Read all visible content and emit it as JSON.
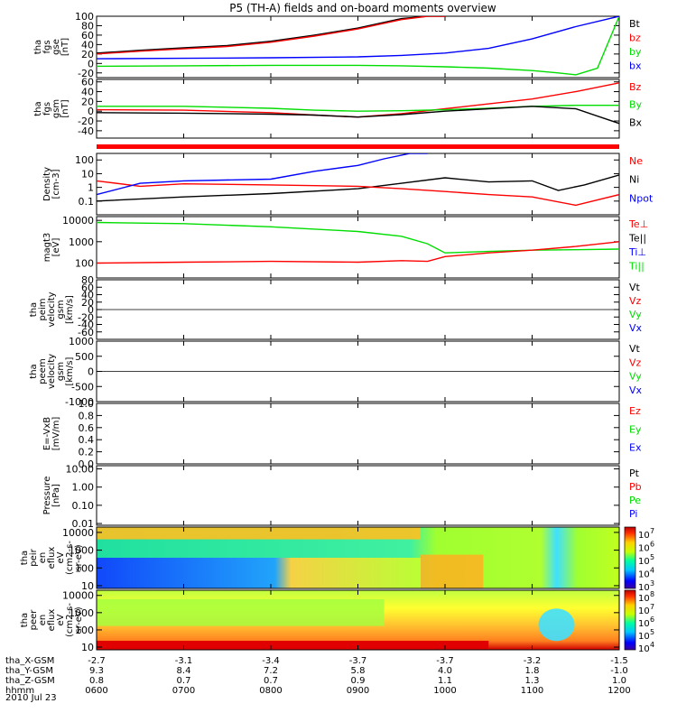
{
  "title": "P5 (TH-A) fields and on-board moments overview",
  "date": "2010 Jul 23",
  "colors": {
    "black": "#000000",
    "red": "#ff0000",
    "green": "#00dd00",
    "blue": "#0000ff",
    "strip": "#ff0000"
  },
  "panels": [
    {
      "id": "fgs-gse",
      "ylabel": [
        "tha",
        "fgs",
        "gse",
        "[nT]"
      ],
      "ylim": [
        -30,
        100
      ],
      "yticks": [
        "100",
        "80",
        "60",
        "40",
        "20",
        "0",
        "-20"
      ],
      "yvals": [
        100,
        80,
        60,
        40,
        20,
        0,
        -20
      ],
      "scale": "linear",
      "legend": [
        {
          "name": "Bt",
          "color": "black"
        },
        {
          "name": "bz",
          "color": "red"
        },
        {
          "name": "by",
          "color": "green"
        },
        {
          "name": "bx",
          "color": "blue"
        }
      ]
    },
    {
      "id": "fgs-gsm",
      "ylabel": [
        "tha",
        "fgs",
        "gsm",
        "[nT]"
      ],
      "ylim": [
        -55,
        65
      ],
      "yticks": [
        "60",
        "40",
        "20",
        "0",
        "-20",
        "-40"
      ],
      "yvals": [
        60,
        40,
        20,
        0,
        -20,
        -40
      ],
      "scale": "linear",
      "legend": [
        {
          "name": "Bz",
          "color": "red"
        },
        {
          "name": "By",
          "color": "green"
        },
        {
          "name": "Bx",
          "color": "black"
        }
      ]
    },
    {
      "id": "density",
      "ylabel": [
        "Density",
        "[cm-3]"
      ],
      "ylim": [
        0.01,
        300
      ],
      "yticks": [
        "100",
        "10",
        "1",
        "0.1"
      ],
      "yvals": [
        100,
        10,
        1,
        0.1
      ],
      "scale": "log",
      "legend": [
        {
          "name": "Ne",
          "color": "red"
        },
        {
          "name": "Ni",
          "color": "black"
        },
        {
          "name": "Npot",
          "color": "blue"
        }
      ]
    },
    {
      "id": "temperature",
      "ylabel": [
        "magt3",
        "[eV]"
      ],
      "ylim": [
        20,
        15000
      ],
      "yticks": [
        "10000",
        "1000",
        "100"
      ],
      "yvals": [
        10000,
        1000,
        100
      ],
      "scale": "log",
      "legend": [
        {
          "name": "Te⊥",
          "color": "red"
        },
        {
          "name": "Te||",
          "color": "black"
        },
        {
          "name": "Ti⊥",
          "color": "blue"
        },
        {
          "name": "Ti||",
          "color": "green"
        }
      ]
    },
    {
      "id": "peim",
      "ylabel": [
        "tha",
        "peim",
        "velocity",
        "gsm",
        "[km/s]"
      ],
      "ylim": [
        -80,
        80
      ],
      "yticks": [
        "80",
        "60",
        "40",
        "20",
        "0",
        "-20",
        "-40",
        "-60"
      ],
      "yvals": [
        80,
        60,
        40,
        20,
        0,
        -20,
        -40,
        -60
      ],
      "scale": "linear",
      "legend": [
        {
          "name": "Vt",
          "color": "black"
        },
        {
          "name": "Vz",
          "color": "red"
        },
        {
          "name": "Vy",
          "color": "green"
        },
        {
          "name": "Vx",
          "color": "blue"
        }
      ]
    },
    {
      "id": "peem",
      "ylabel": [
        "tha",
        "peem",
        "velocity",
        "gsm",
        "[km/s]"
      ],
      "ylim": [
        -1000,
        1000
      ],
      "yticks": [
        "1000",
        "500",
        "0",
        "-500",
        "-1000"
      ],
      "yvals": [
        1000,
        500,
        0,
        -500,
        -1000
      ],
      "scale": "linear",
      "legend": [
        {
          "name": "Vt",
          "color": "black"
        },
        {
          "name": "Vz",
          "color": "red"
        },
        {
          "name": "Vy",
          "color": "green"
        },
        {
          "name": "Vx",
          "color": "blue"
        }
      ]
    },
    {
      "id": "efield",
      "ylabel": [
        "E=-VxB",
        "[mV/m]"
      ],
      "ylim": [
        0,
        1
      ],
      "yticks": [
        "1.0",
        "0.8",
        "0.6",
        "0.4",
        "0.2",
        "0.0"
      ],
      "yvals": [
        1,
        0.8,
        0.6,
        0.4,
        0.2,
        0
      ],
      "scale": "linear",
      "legend": [
        {
          "name": "Ez",
          "color": "red"
        },
        {
          "name": "Ey",
          "color": "green"
        },
        {
          "name": "Ex",
          "color": "blue"
        }
      ]
    },
    {
      "id": "pressure",
      "ylabel": [
        "Pressure",
        "[nPa]"
      ],
      "ylim": [
        0.008,
        15
      ],
      "yticks": [
        "10.00",
        "1.00",
        "0.10",
        "0.01"
      ],
      "yvals": [
        10,
        1,
        0.1,
        0.01
      ],
      "scale": "log",
      "legend": [
        {
          "name": "Pt",
          "color": "black"
        },
        {
          "name": "Pb",
          "color": "red"
        },
        {
          "name": "Pe",
          "color": "green"
        },
        {
          "name": "Pi",
          "color": "blue"
        }
      ]
    },
    {
      "id": "peir",
      "ylabel": [
        "tha",
        "peir",
        "en",
        "eflux",
        "eV",
        "(cm2-s-",
        "sr-eV)"
      ],
      "ylim": [
        7,
        20000
      ],
      "yticks": [
        "10000",
        "1000",
        "100",
        "10"
      ],
      "yvals": [
        10000,
        1000,
        100,
        10
      ],
      "scale": "log",
      "spectrogram": true,
      "colorbar": [
        {
          "label": "10",
          "exp": "7"
        },
        {
          "label": "10",
          "exp": "6"
        },
        {
          "label": "10",
          "exp": "5"
        },
        {
          "label": "10",
          "exp": "4"
        },
        {
          "label": "10",
          "exp": "3"
        }
      ]
    },
    {
      "id": "peer",
      "ylabel": [
        "tha",
        "peer",
        "en",
        "eflux",
        "eV",
        "(cm2-s-",
        "sr-eV)"
      ],
      "ylim": [
        7,
        20000
      ],
      "yticks": [
        "10000",
        "1000",
        "100",
        "10"
      ],
      "yvals": [
        10000,
        1000,
        100,
        10
      ],
      "scale": "log",
      "spectrogram": true,
      "colorbar": [
        {
          "label": "10",
          "exp": "8"
        },
        {
          "label": "10",
          "exp": "7"
        },
        {
          "label": "10",
          "exp": "6"
        },
        {
          "label": "10",
          "exp": "5"
        },
        {
          "label": "10",
          "exp": "4"
        }
      ]
    }
  ],
  "xaxis": {
    "rows": [
      {
        "label": "tha_X-GSM",
        "values": [
          "-2.7",
          "-3.1",
          "-3.4",
          "-3.7",
          "-3.7",
          "-3.2",
          "-1.5"
        ]
      },
      {
        "label": "tha_Y-GSM",
        "values": [
          "9.3",
          "8.4",
          "7.2",
          "5.8",
          "4.0",
          "1.8",
          "-1.0"
        ]
      },
      {
        "label": "tha_Z-GSM",
        "values": [
          "0.8",
          "0.7",
          "0.7",
          "0.9",
          "1.1",
          "1.3",
          "1.0"
        ]
      },
      {
        "label": "hhmm",
        "values": [
          "0600",
          "0700",
          "0800",
          "0900",
          "1000",
          "1100",
          "1200"
        ]
      }
    ]
  },
  "chart_data": {
    "type": "line",
    "title": "P5 (TH-A) fields and on-board moments overview",
    "x_time": [
      "0600",
      "0700",
      "0800",
      "0900",
      "1000",
      "1100",
      "1200"
    ],
    "series": [
      {
        "panel": "fgs-gse",
        "name": "Bt",
        "x": [
          0,
          0.5,
          1,
          1.5,
          2,
          2.5,
          3,
          3.5,
          3.8,
          4
        ],
        "values": [
          22,
          28,
          33,
          38,
          47,
          60,
          75,
          95,
          100,
          100
        ]
      },
      {
        "panel": "fgs-gse",
        "name": "bz",
        "x": [
          0,
          0.5,
          1,
          1.5,
          2,
          2.5,
          3,
          3.5,
          3.8,
          4
        ],
        "values": [
          20,
          26,
          31,
          36,
          45,
          58,
          73,
          93,
          100,
          100
        ]
      },
      {
        "panel": "fgs-gse",
        "name": "by",
        "x": [
          0,
          1,
          2,
          3,
          3.5,
          4,
          4.5,
          5,
          5.3,
          5.5,
          5.75,
          6
        ],
        "values": [
          -6,
          -5,
          -4,
          -4,
          -5,
          -7,
          -10,
          -15,
          -20,
          -24,
          -10,
          100
        ]
      },
      {
        "panel": "fgs-gse",
        "name": "bx",
        "x": [
          0,
          1,
          2,
          3,
          3.5,
          4,
          4.5,
          5,
          5.5,
          6
        ],
        "values": [
          10,
          11,
          12,
          14,
          17,
          22,
          32,
          52,
          78,
          100
        ]
      },
      {
        "panel": "fgs-gsm",
        "name": "Bz",
        "x": [
          0,
          1,
          2,
          2.5,
          3,
          3.5,
          4,
          4.5,
          5,
          5.5,
          6
        ],
        "values": [
          3,
          2,
          -3,
          -8,
          -12,
          -5,
          5,
          15,
          25,
          40,
          58
        ]
      },
      {
        "panel": "fgs-gsm",
        "name": "By",
        "x": [
          0,
          1,
          2,
          2.5,
          3,
          3.5,
          4,
          4.5,
          5,
          5.5,
          6
        ],
        "values": [
          10,
          10,
          6,
          2,
          0,
          1,
          3,
          6,
          10,
          12,
          12
        ]
      },
      {
        "panel": "fgs-gsm",
        "name": "Bx",
        "x": [
          0,
          1,
          2,
          2.5,
          3,
          3.5,
          4,
          4.5,
          5,
          5.5,
          6
        ],
        "values": [
          -3,
          -4,
          -6,
          -8,
          -12,
          -7,
          0,
          5,
          10,
          5,
          -25
        ]
      },
      {
        "panel": "density",
        "name": "Ni",
        "x": [
          0,
          1,
          2,
          3,
          3.5,
          4,
          4.5,
          5,
          5.3,
          5.6,
          6
        ],
        "values": [
          0.1,
          0.2,
          0.35,
          0.8,
          2,
          5,
          2.5,
          3,
          0.6,
          1.5,
          8
        ]
      },
      {
        "panel": "density",
        "name": "Ne",
        "x": [
          0,
          0.5,
          1,
          2,
          3,
          3.5,
          4,
          4.5,
          5,
          5.5,
          6
        ],
        "values": [
          3,
          1.2,
          1.8,
          1.5,
          1.2,
          0.8,
          0.5,
          0.3,
          0.2,
          0.05,
          0.3
        ]
      },
      {
        "panel": "density",
        "name": "Npot",
        "x": [
          0,
          0.5,
          1,
          2,
          2.5,
          3,
          3.3,
          3.6,
          3.8
        ],
        "values": [
          0.3,
          2,
          3,
          4,
          15,
          40,
          120,
          300,
          300
        ]
      },
      {
        "panel": "temperature",
        "name": "Ti||",
        "x": [
          0,
          1,
          2,
          3,
          3.5,
          3.8,
          4,
          4.5,
          5,
          5.5,
          6
        ],
        "values": [
          8000,
          7000,
          5000,
          3000,
          1800,
          800,
          300,
          350,
          400,
          420,
          450
        ]
      },
      {
        "panel": "temperature",
        "name": "Te⊥",
        "x": [
          0,
          1,
          2,
          3,
          3.5,
          3.8,
          4,
          4.5,
          5,
          5.5,
          6
        ],
        "values": [
          100,
          110,
          120,
          110,
          130,
          120,
          200,
          300,
          400,
          600,
          1000
        ]
      }
    ],
    "xlabel": "hhmm",
    "date": "2010 Jul 23"
  }
}
